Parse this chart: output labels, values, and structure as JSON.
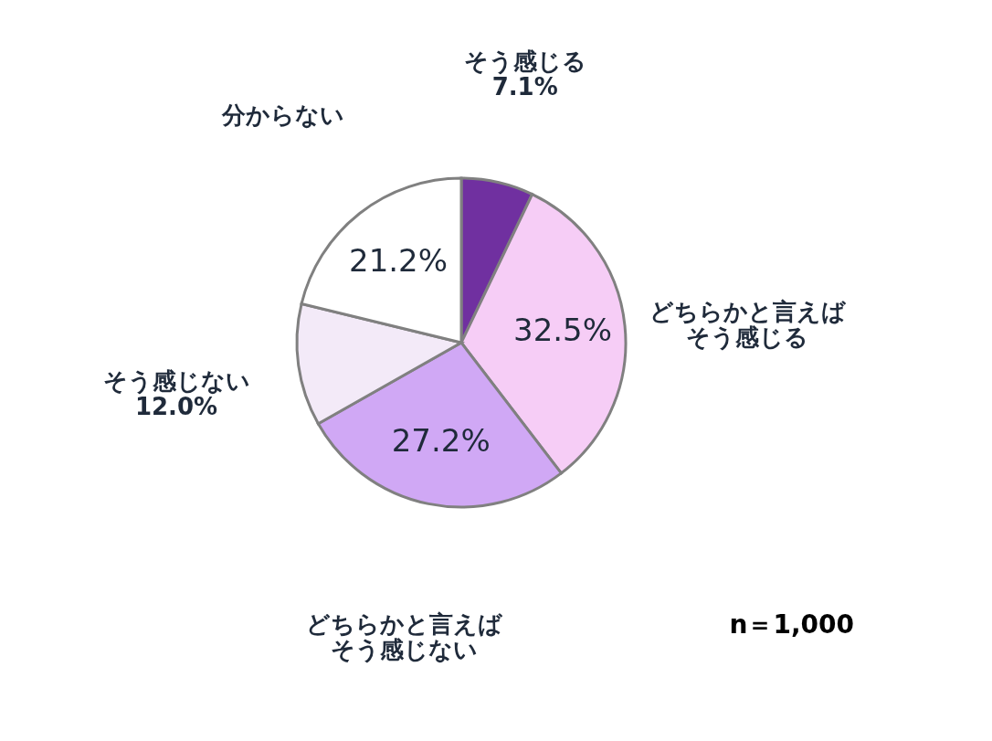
{
  "chart_data": {
    "type": "pie",
    "categories": [
      "そう感じる",
      "どちらかと言えばそう感じる",
      "どちらかと言えばそう感じない",
      "そう感じない",
      "分からない"
    ],
    "values": [
      7.1,
      32.5,
      27.2,
      12.0,
      21.2
    ],
    "value_labels": [
      "7.1%",
      "32.5%",
      "27.2%",
      "12.0%",
      "21.2%"
    ],
    "colors": [
      "#7030a0",
      "#f6cdf6",
      "#d0a8f5",
      "#f3eaf8",
      "#ffffff"
    ],
    "legend": false,
    "annotations": [
      "n＝1,000"
    ]
  }
}
